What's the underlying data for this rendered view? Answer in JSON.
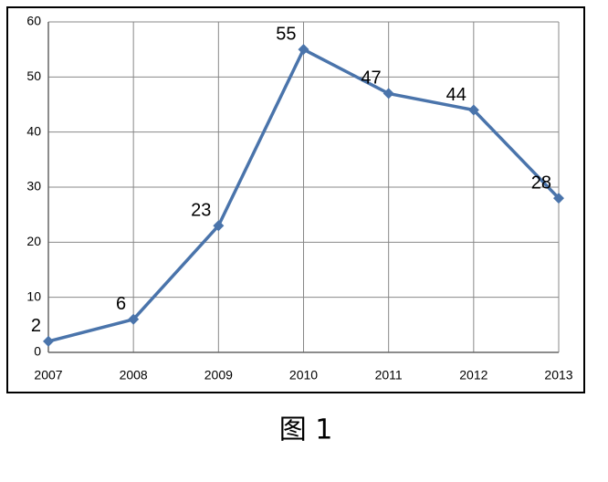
{
  "chart_data": {
    "type": "line",
    "caption": "图 1",
    "categories": [
      "2007",
      "2008",
      "2009",
      "2010",
      "2011",
      "2012",
      "2013"
    ],
    "series": [
      {
        "color": "#4a74ab",
        "values": [
          2,
          6,
          23,
          55,
          47,
          44,
          28
        ]
      }
    ],
    "ylim": [
      0,
      60
    ],
    "yticks": [
      0,
      10,
      20,
      30,
      40,
      50,
      60
    ],
    "grid": true
  }
}
